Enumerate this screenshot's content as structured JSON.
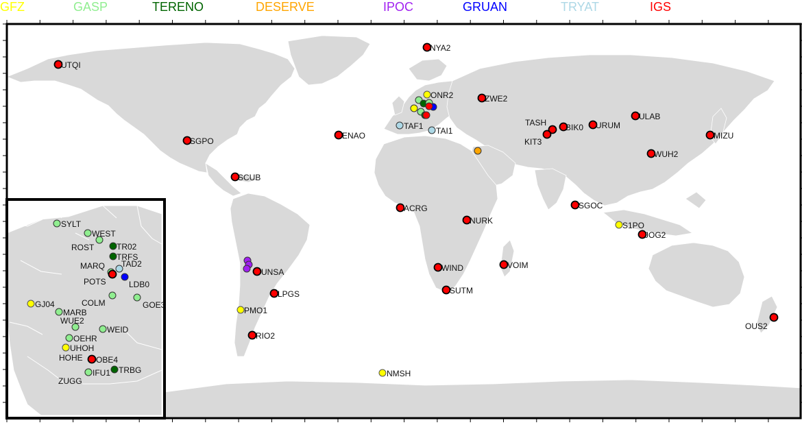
{
  "legend": [
    {
      "label": "GFZ",
      "color": "#ffff00"
    },
    {
      "label": "GASP",
      "color": "#90ee90"
    },
    {
      "label": "TERENO",
      "color": "#006400"
    },
    {
      "label": "DESERVE",
      "color": "#ffa500"
    },
    {
      "label": "IPOC",
      "color": "#a020f0"
    },
    {
      "label": "GRUAN",
      "color": "#0000ff"
    },
    {
      "label": "TRYAT",
      "color": "#add8e6"
    },
    {
      "label": "IGS",
      "color": "#ff0000"
    }
  ],
  "world_stations": [
    {
      "name": "UTQI",
      "network": "IGS"
    },
    {
      "name": "NYA2",
      "network": "IGS"
    },
    {
      "name": "ONR2",
      "network": "GFZ"
    },
    {
      "name": "ZWE2",
      "network": "IGS"
    },
    {
      "name": "ULAB",
      "network": "IGS"
    },
    {
      "name": "TASH",
      "network": "IGS"
    },
    {
      "name": "BIK0",
      "network": "IGS"
    },
    {
      "name": "URUM",
      "network": "IGS"
    },
    {
      "name": "KIT3",
      "network": "IGS"
    },
    {
      "name": "MIZU",
      "network": "IGS"
    },
    {
      "name": "WUH2",
      "network": "IGS"
    },
    {
      "name": "SGPO",
      "network": "IGS"
    },
    {
      "name": "ENAO",
      "network": "IGS"
    },
    {
      "name": "TAF1",
      "network": "TRYAT"
    },
    {
      "name": "TAI1",
      "network": "TRYAT"
    },
    {
      "name": "SCUB",
      "network": "IGS"
    },
    {
      "name": "ACRG",
      "network": "IGS"
    },
    {
      "name": "NURK",
      "network": "IGS"
    },
    {
      "name": "SGOC",
      "network": "IGS"
    },
    {
      "name": "S1PO",
      "network": "GFZ"
    },
    {
      "name": "JOG2",
      "network": "IGS"
    },
    {
      "name": "UNSA",
      "network": "IGS"
    },
    {
      "name": "WIND",
      "network": "IGS"
    },
    {
      "name": "VOIM",
      "network": "IGS"
    },
    {
      "name": "LPGS",
      "network": "IGS"
    },
    {
      "name": "SUTM",
      "network": "IGS"
    },
    {
      "name": "PMO1",
      "network": "GFZ"
    },
    {
      "name": "RIO2",
      "network": "IGS"
    },
    {
      "name": "OUS2",
      "network": "IGS"
    },
    {
      "name": "NMSH",
      "network": "GFZ"
    }
  ],
  "inset_stations": [
    {
      "name": "SYLT",
      "network": "GASP"
    },
    {
      "name": "WEST",
      "network": "GASP"
    },
    {
      "name": "ROST",
      "network": "GASP"
    },
    {
      "name": "TR02",
      "network": "TERENO"
    },
    {
      "name": "TRFS",
      "network": "TERENO"
    },
    {
      "name": "MARQ",
      "network": "GASP"
    },
    {
      "name": "TAD2",
      "network": "TRYAT"
    },
    {
      "name": "POTS",
      "network": "IGS"
    },
    {
      "name": "LDB0",
      "network": "GRUAN"
    },
    {
      "name": "GJ04",
      "network": "GFZ"
    },
    {
      "name": "COLM",
      "network": "GASP"
    },
    {
      "name": "GOE3",
      "network": "GASP"
    },
    {
      "name": "MARB",
      "network": "GASP"
    },
    {
      "name": "WUE2",
      "network": "GASP"
    },
    {
      "name": "WEID",
      "network": "GASP"
    },
    {
      "name": "OEHR",
      "network": "GASP"
    },
    {
      "name": "UHOH",
      "network": "GFZ"
    },
    {
      "name": "HOHE",
      "network": "GFZ"
    },
    {
      "name": "OBE4",
      "network": "IGS"
    },
    {
      "name": "IFU1",
      "network": "GASP"
    },
    {
      "name": "TRBG",
      "network": "TERENO"
    },
    {
      "name": "ZUGG",
      "network": "GASP"
    }
  ]
}
